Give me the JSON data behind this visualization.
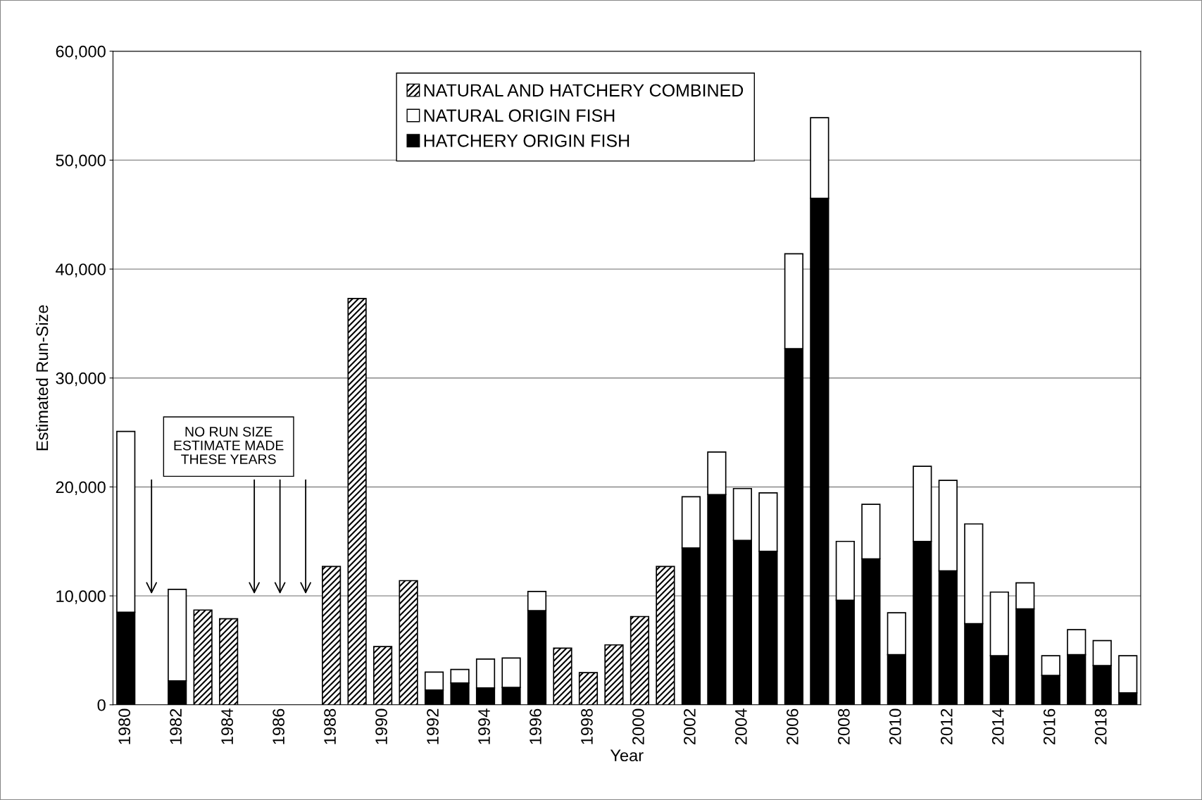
{
  "chart_data": {
    "type": "bar",
    "stacked": true,
    "xlabel": "Year",
    "ylabel": "Estimated Run-Size",
    "categories": [
      "1980",
      null,
      "1982",
      null,
      "1984",
      null,
      "1986",
      null,
      "1988",
      null,
      "1990",
      null,
      "1992",
      null,
      "1994",
      null,
      "1996",
      null,
      "1998",
      null,
      "2000",
      null,
      "2002",
      null,
      "2004",
      null,
      "2006",
      null,
      "2008",
      null,
      "2010",
      null,
      "2012",
      null,
      "2014",
      null,
      "2016",
      null,
      "2018",
      null
    ],
    "series": [
      {
        "name": "HATCHERY ORIGIN FISH",
        "color": "#000000",
        "values": [
          8500,
          null,
          2200,
          null,
          null,
          null,
          null,
          null,
          null,
          null,
          null,
          null,
          1350,
          2000,
          1550,
          1600,
          8650,
          null,
          null,
          null,
          null,
          null,
          14400,
          19300,
          15100,
          14100,
          32700,
          46500,
          9600,
          13400,
          4600,
          15000,
          12300,
          7450,
          4500,
          8800,
          2700,
          4600,
          3600,
          1100
        ]
      },
      {
        "name": "NATURAL ORIGIN FISH",
        "color": "#ffffff",
        "values": [
          16600,
          null,
          8400,
          null,
          null,
          null,
          null,
          null,
          null,
          null,
          null,
          null,
          1650,
          1250,
          2650,
          2700,
          1750,
          null,
          null,
          null,
          null,
          null,
          4700,
          3900,
          4750,
          5350,
          8700,
          7400,
          5400,
          5000,
          3850,
          6900,
          8300,
          9150,
          5850,
          2400,
          1800,
          2300,
          2300,
          3400
        ]
      },
      {
        "name": "NATURAL AND HATCHERY COMBINED",
        "color": "#000000",
        "values": [
          null,
          null,
          null,
          8700,
          7900,
          null,
          null,
          null,
          12700,
          37300,
          5350,
          11400,
          null,
          null,
          null,
          null,
          null,
          5200,
          2950,
          5500,
          8100,
          12700,
          null,
          null,
          null,
          null,
          null,
          null,
          null,
          null,
          null,
          null,
          null,
          null,
          null,
          null,
          null,
          null,
          null,
          null
        ]
      }
    ],
    "ylim": [
      0,
      60000
    ],
    "yticks": [
      0,
      {
        "value": 10000,
        "label": "10,000"
      },
      {
        "value": 20000,
        "label": "20,000"
      },
      {
        "value": 30000,
        "label": "30,000"
      },
      {
        "value": 40000,
        "label": "40,000"
      },
      {
        "value": 50000,
        "label": "50,000"
      },
      {
        "value": 60000,
        "label": "60,000"
      }
    ],
    "grid": "y",
    "legend": "top",
    "annotations": [
      "NO RUN SIZE\nESTIMATE MADE\nTHESE YEARS"
    ]
  }
}
